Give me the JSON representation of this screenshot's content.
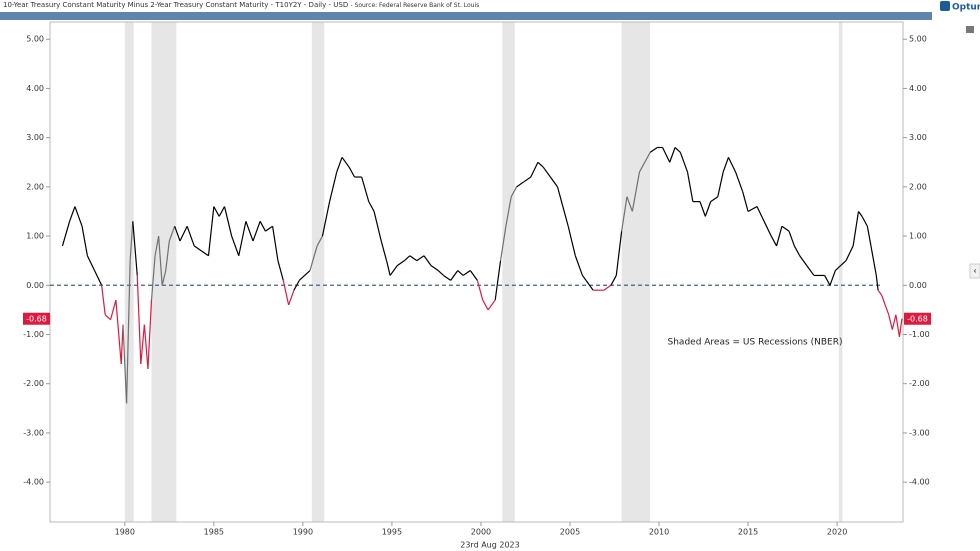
{
  "chart_data": {
    "type": "line",
    "title": "10-Year Treasury Constant Maturity Minus 2-Year Treasury Constant Maturity - T10Y2Y - Daily - USD",
    "source": "- Source: Federal Reserve Bank of St. Louis",
    "brand": "Optuma",
    "annotation": "Shaded Areas = US Recessions (NBER)",
    "date_label": "23rd Aug 2023",
    "xlim": [
      1975.8,
      2023.7
    ],
    "xticks": [
      1980,
      1985,
      1990,
      1995,
      2000,
      2005,
      2010,
      2015,
      2020
    ],
    "ylim": [
      -4.81,
      5.35
    ],
    "yticks": [
      {
        "value": 5,
        "label": "5.00"
      },
      {
        "value": 4,
        "label": "4.00"
      },
      {
        "value": 3,
        "label": "3.00"
      },
      {
        "value": 2,
        "label": "2.00"
      },
      {
        "value": 1,
        "label": "1.00"
      },
      {
        "value": 0,
        "label": "0.00"
      },
      {
        "value": -1,
        "label": "-1.00"
      },
      {
        "value": -2,
        "label": "-2.00"
      },
      {
        "value": -3,
        "label": "-3.00"
      },
      {
        "value": -4,
        "label": "-4.00"
      }
    ],
    "zero_line": 0,
    "recessions": [
      [
        1980.0,
        1980.5
      ],
      [
        1981.5,
        1982.9
      ],
      [
        1990.5,
        1991.2
      ],
      [
        2001.2,
        2001.9
      ],
      [
        2007.9,
        2009.5
      ],
      [
        2020.1,
        2020.3
      ]
    ],
    "recession_fill": "#e6e6e6",
    "recession_line_color": "#707070",
    "negative_color": "#e0193f",
    "zero_line_color": "#4a5f86",
    "series": [
      {
        "name": "T10Y2Y",
        "color": "#000000",
        "x": [
          1976.5,
          1976.9,
          1977.2,
          1977.6,
          1977.9,
          1978.3,
          1978.7,
          1978.9,
          1979.2,
          1979.5,
          1979.8,
          1979.9,
          1980.1,
          1980.3,
          1980.45,
          1980.7,
          1980.9,
          1981.1,
          1981.3,
          1981.5,
          1981.7,
          1981.9,
          1982.1,
          1982.3,
          1982.5,
          1982.8,
          1983.1,
          1983.5,
          1983.9,
          1984.3,
          1984.7,
          1985.0,
          1985.3,
          1985.6,
          1986.0,
          1986.4,
          1986.8,
          1987.2,
          1987.6,
          1987.9,
          1988.3,
          1988.6,
          1988.9,
          1989.2,
          1989.5,
          1989.8,
          1990.1,
          1990.4,
          1990.8,
          1991.1,
          1991.5,
          1991.9,
          1992.2,
          1992.6,
          1992.9,
          1993.3,
          1993.7,
          1994.0,
          1994.4,
          1994.7,
          1994.9,
          1995.3,
          1995.7,
          1996.0,
          1996.4,
          1996.8,
          1997.2,
          1997.6,
          1997.9,
          1998.3,
          1998.7,
          1999.0,
          1999.4,
          1999.8,
          2000.1,
          2000.4,
          2000.8,
          2001.1,
          2001.4,
          2001.7,
          2002.0,
          2002.4,
          2002.8,
          2003.2,
          2003.5,
          2003.9,
          2004.3,
          2004.6,
          2004.9,
          2005.3,
          2005.7,
          2005.9,
          2006.3,
          2006.7,
          2006.9,
          2007.3,
          2007.6,
          2007.9,
          2008.2,
          2008.5,
          2008.9,
          2009.2,
          2009.5,
          2009.9,
          2010.2,
          2010.6,
          2010.9,
          2011.2,
          2011.6,
          2011.9,
          2012.3,
          2012.6,
          2012.9,
          2013.3,
          2013.6,
          2013.9,
          2014.3,
          2014.7,
          2015.0,
          2015.5,
          2015.9,
          2016.3,
          2016.6,
          2016.9,
          2017.3,
          2017.6,
          2017.9,
          2018.3,
          2018.7,
          2018.9,
          2019.3,
          2019.6,
          2019.9,
          2020.2,
          2020.5,
          2020.9,
          2021.2,
          2021.4,
          2021.7,
          2021.9,
          2022.2,
          2022.3,
          2022.5,
          2022.7,
          2022.9,
          2023.1,
          2023.3,
          2023.5,
          2023.64
        ],
        "values": [
          0.8,
          1.3,
          1.6,
          1.2,
          0.6,
          0.3,
          0.0,
          -0.6,
          -0.7,
          -0.3,
          -1.6,
          -0.8,
          -2.4,
          0.5,
          1.3,
          0.2,
          -1.6,
          -0.8,
          -1.7,
          -0.3,
          0.6,
          1.0,
          0.0,
          0.3,
          0.9,
          1.2,
          0.9,
          1.2,
          0.8,
          0.7,
          0.6,
          1.6,
          1.4,
          1.6,
          1.0,
          0.6,
          1.3,
          0.9,
          1.3,
          1.1,
          1.2,
          0.5,
          0.1,
          -0.4,
          -0.1,
          0.1,
          0.2,
          0.3,
          0.8,
          1.0,
          1.7,
          2.3,
          2.6,
          2.4,
          2.2,
          2.2,
          1.7,
          1.5,
          0.9,
          0.5,
          0.2,
          0.4,
          0.5,
          0.6,
          0.5,
          0.6,
          0.4,
          0.3,
          0.2,
          0.1,
          0.3,
          0.2,
          0.3,
          0.1,
          -0.3,
          -0.5,
          -0.3,
          0.5,
          1.2,
          1.8,
          2.0,
          2.1,
          2.2,
          2.5,
          2.4,
          2.2,
          2.0,
          1.6,
          1.2,
          0.6,
          0.2,
          0.1,
          -0.1,
          -0.1,
          -0.1,
          0.0,
          0.2,
          1.1,
          1.8,
          1.5,
          2.3,
          2.5,
          2.7,
          2.8,
          2.8,
          2.5,
          2.8,
          2.7,
          2.3,
          1.7,
          1.7,
          1.4,
          1.7,
          1.8,
          2.3,
          2.6,
          2.3,
          1.9,
          1.5,
          1.6,
          1.3,
          1.0,
          0.8,
          1.2,
          1.1,
          0.8,
          0.6,
          0.4,
          0.2,
          0.2,
          0.2,
          0.0,
          0.3,
          0.4,
          0.5,
          0.8,
          1.5,
          1.4,
          1.2,
          0.8,
          0.2,
          -0.1,
          -0.2,
          -0.4,
          -0.6,
          -0.9,
          -0.6,
          -1.05,
          -0.68
        ]
      }
    ]
  }
}
